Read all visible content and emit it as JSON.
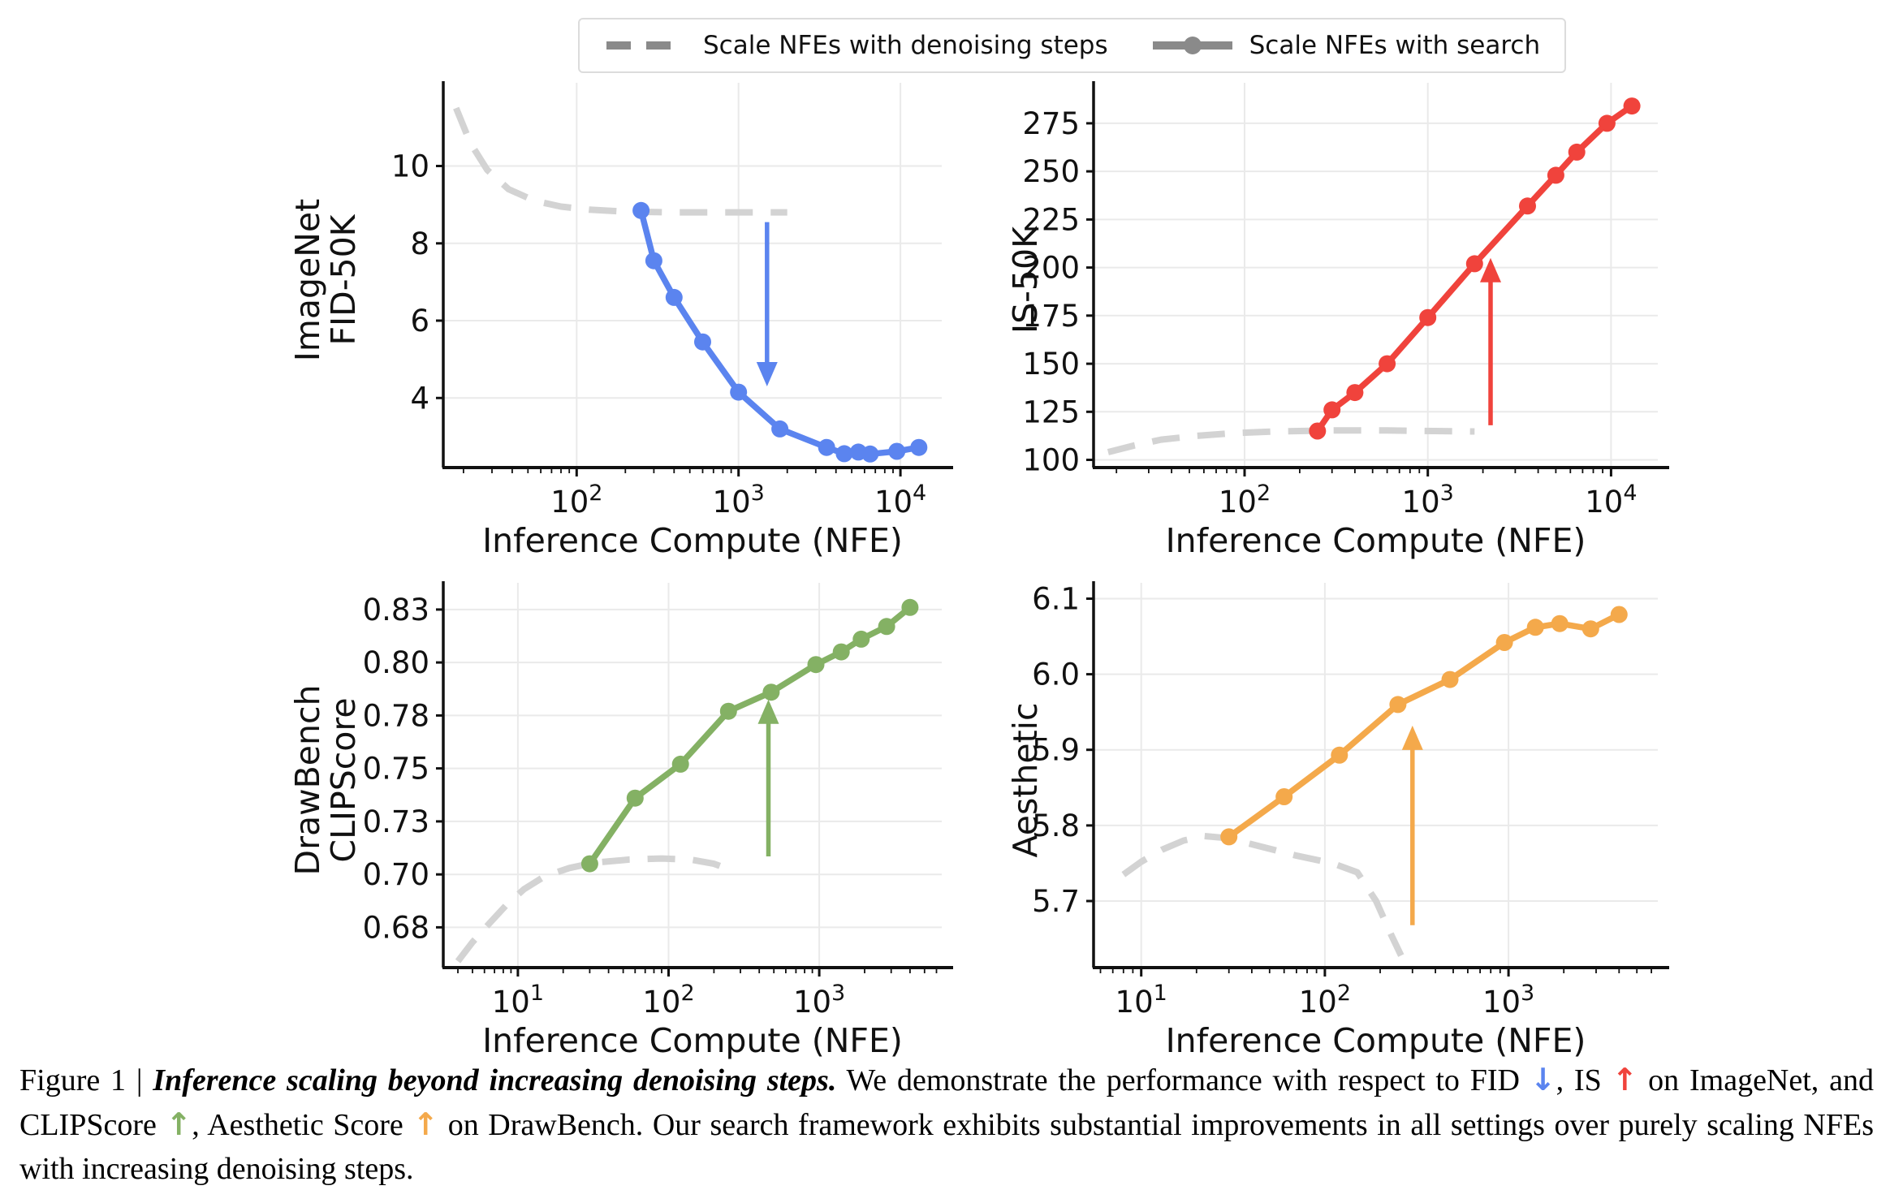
{
  "colors": {
    "blue": "#5B84EF",
    "red": "#F0433C",
    "green": "#84B164",
    "orange": "#F4A94B",
    "dashed_gray": "#D3D3D3",
    "legend_gray": "#8A8A8A",
    "grid": "#EAEAEA",
    "axis": "#111111"
  },
  "legend": {
    "items": [
      {
        "label": "Scale NFEs with denoising steps",
        "style": "dashed"
      },
      {
        "label": "Scale NFEs with search",
        "style": "solid-marker"
      }
    ]
  },
  "chart_data": [
    {
      "type": "line",
      "name": "imagenet-fid",
      "xscale": "log",
      "xlabel": "Inference Compute (NFE)",
      "ylabel_lines": [
        "ImageNet",
        "FID-50K"
      ],
      "xlim": [
        15,
        18000
      ],
      "ylim": [
        2.2,
        11.9
      ],
      "xtick_exps": [
        2,
        3,
        4
      ],
      "yticks": [
        {
          "v": 4,
          "label": "4"
        },
        {
          "v": 6,
          "label": "6"
        },
        {
          "v": 8,
          "label": "8"
        },
        {
          "v": 10,
          "label": "10"
        }
      ],
      "color_key": "blue",
      "series": [
        {
          "name": "Scale NFEs with denoising steps",
          "style": "dashed",
          "x": [
            18,
            22,
            28,
            38,
            55,
            80,
            120,
            200,
            400,
            800,
            1500,
            2000
          ],
          "y": [
            11.5,
            10.6,
            9.9,
            9.4,
            9.1,
            8.95,
            8.87,
            8.82,
            8.8,
            8.8,
            8.8,
            8.8
          ]
        },
        {
          "name": "Scale NFEs with search",
          "style": "solid-marker",
          "x": [
            250,
            300,
            400,
            600,
            1000,
            1800,
            3500,
            4500,
            5500,
            6500,
            9500,
            13000
          ],
          "y": [
            8.85,
            7.55,
            6.6,
            5.45,
            4.15,
            3.2,
            2.72,
            2.56,
            2.6,
            2.55,
            2.62,
            2.72
          ]
        }
      ],
      "arrow": {
        "x": 1500,
        "from": 8.55,
        "to": 4.3,
        "direction": "down"
      }
    },
    {
      "type": "line",
      "name": "imagenet-is",
      "xscale": "log",
      "xlabel": "Inference Compute (NFE)",
      "ylabel_lines": [
        "IS-50K"
      ],
      "xlim": [
        15,
        18000
      ],
      "ylim": [
        96,
        291
      ],
      "xtick_exps": [
        2,
        3,
        4
      ],
      "yticks": [
        {
          "v": 100,
          "label": "100"
        },
        {
          "v": 125,
          "label": "125"
        },
        {
          "v": 150,
          "label": "150"
        },
        {
          "v": 175,
          "label": "175"
        },
        {
          "v": 200,
          "label": "200"
        },
        {
          "v": 225,
          "label": "225"
        },
        {
          "v": 250,
          "label": "250"
        },
        {
          "v": 275,
          "label": "275"
        }
      ],
      "color_key": "red",
      "series": [
        {
          "name": "Scale NFEs with denoising steps",
          "style": "dashed",
          "x": [
            18,
            25,
            35,
            55,
            90,
            150,
            300,
            600,
            1100,
            1800
          ],
          "y": [
            104,
            107.5,
            110.5,
            112.5,
            114,
            114.8,
            115.3,
            115.3,
            115,
            114.8
          ]
        },
        {
          "name": "Scale NFEs with search",
          "style": "solid-marker",
          "x": [
            250,
            300,
            400,
            600,
            1000,
            1800,
            3500,
            5000,
            6500,
            9500,
            13000
          ],
          "y": [
            115,
            126,
            135,
            150,
            174,
            202,
            232,
            248,
            260,
            275,
            284
          ]
        }
      ],
      "arrow": {
        "x": 2200,
        "from": 118,
        "to": 205,
        "direction": "up"
      }
    },
    {
      "type": "line",
      "name": "drawbench-clipscore",
      "xscale": "log",
      "xlabel": "Inference Compute (NFE)",
      "ylabel_lines": [
        "DrawBench",
        "CLIPScore"
      ],
      "xlim": [
        3.2,
        6500
      ],
      "ylim": [
        0.661,
        0.838
      ],
      "xtick_exps": [
        1,
        2,
        3
      ],
      "yticks": [
        {
          "v": 0.68,
          "label": "0.68"
        },
        {
          "v": 0.705,
          "label": "0.70"
        },
        {
          "v": 0.73,
          "label": "0.73"
        },
        {
          "v": 0.755,
          "label": "0.75"
        },
        {
          "v": 0.78,
          "label": "0.78"
        },
        {
          "v": 0.805,
          "label": "0.80"
        },
        {
          "v": 0.83,
          "label": "0.83"
        }
      ],
      "color_key": "green",
      "series": [
        {
          "name": "Scale NFEs with denoising steps",
          "style": "dashed",
          "x": [
            4,
            5,
            6.5,
            8.5,
            11,
            15,
            22,
            32,
            55,
            90,
            140,
            200,
            260
          ],
          "y": [
            0.664,
            0.673,
            0.682,
            0.691,
            0.698,
            0.704,
            0.708,
            0.7105,
            0.712,
            0.7125,
            0.712,
            0.71,
            0.707
          ]
        },
        {
          "name": "Scale NFEs with search",
          "style": "solid-marker",
          "x": [
            30,
            60,
            120,
            250,
            480,
            950,
            1400,
            1900,
            2800,
            4000
          ],
          "y": [
            0.71,
            0.741,
            0.757,
            0.782,
            0.791,
            0.804,
            0.81,
            0.816,
            0.822,
            0.831
          ]
        }
      ],
      "arrow": {
        "x": 460,
        "from": 0.7135,
        "to": 0.7875,
        "direction": "up"
      }
    },
    {
      "type": "line",
      "name": "drawbench-aesthetic",
      "xscale": "log",
      "xlabel": "Inference Compute (NFE)",
      "ylabel_lines": [
        "Aesthetic"
      ],
      "xlim": [
        5.5,
        6500
      ],
      "ylim": [
        5.612,
        6.108
      ],
      "xtick_exps": [
        1,
        2,
        3
      ],
      "yticks": [
        {
          "v": 5.7,
          "label": "5.7"
        },
        {
          "v": 5.8,
          "label": "5.8"
        },
        {
          "v": 5.9,
          "label": "5.9"
        },
        {
          "v": 6.0,
          "label": "6.0"
        },
        {
          "v": 6.1,
          "label": "6.1"
        }
      ],
      "color_key": "orange",
      "series": [
        {
          "name": "Scale NFEs with denoising steps",
          "style": "dashed",
          "x": [
            8,
            10,
            13,
            17,
            22,
            30,
            45,
            70,
            110,
            150,
            190,
            230,
            260
          ],
          "y": [
            5.735,
            5.752,
            5.768,
            5.78,
            5.786,
            5.783,
            5.772,
            5.76,
            5.75,
            5.738,
            5.7,
            5.655,
            5.628
          ]
        },
        {
          "name": "Scale NFEs with search",
          "style": "solid-marker",
          "x": [
            30,
            60,
            120,
            250,
            480,
            950,
            1400,
            1900,
            2800,
            4000
          ],
          "y": [
            5.785,
            5.838,
            5.893,
            5.96,
            5.993,
            6.042,
            6.062,
            6.067,
            6.06,
            6.079
          ]
        }
      ],
      "arrow": {
        "x": 300,
        "from": 5.668,
        "to": 5.932,
        "direction": "up"
      }
    }
  ],
  "caption": {
    "segments": [
      {
        "text": "Figure 1 | "
      },
      {
        "text": "Inference scaling beyond increasing denoising steps."
      },
      {
        "text": " We demonstrate the performance with respect to FID "
      },
      {
        "text": "↓"
      },
      {
        "text": ", IS "
      },
      {
        "text": "↑"
      },
      {
        "text": " on ImageNet, and CLIPScore "
      },
      {
        "text": "↑"
      },
      {
        "text": ", Aesthetic Score "
      },
      {
        "text": "↑"
      },
      {
        "text": " on DrawBench. Our search framework exhibits substantial improvements in all settings over purely scaling NFEs with increasing denoising steps."
      }
    ]
  }
}
